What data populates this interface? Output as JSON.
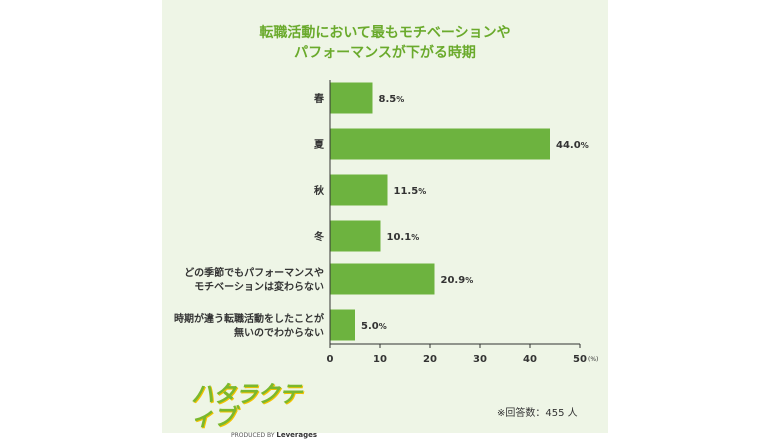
{
  "chart_data": {
    "type": "bar",
    "orientation": "horizontal",
    "title_lines": [
      "転職活動において最もモチベーションや",
      "パフォーマンスが下がる時期"
    ],
    "categories": [
      [
        "春"
      ],
      [
        "夏"
      ],
      [
        "秋"
      ],
      [
        "冬"
      ],
      [
        "どの季節でもパフォーマンスや",
        "モチベーションは変わらない"
      ],
      [
        "時期が違う転職活動をしたことが",
        "無いのでわからない"
      ]
    ],
    "values": [
      8.5,
      44.0,
      11.5,
      10.1,
      20.9,
      5.0
    ],
    "value_labels": [
      "8.5",
      "44.0",
      "11.5",
      "10.1",
      "20.9",
      "5.0"
    ],
    "value_unit": "%",
    "x_ticks": [
      "0",
      "10",
      "20",
      "30",
      "40",
      "50"
    ],
    "x_unit_label": "(%)",
    "xlim": [
      0,
      50
    ],
    "bar_color": "#6db33f",
    "title_color": "#6aaa2c",
    "grid": false
  },
  "logo": {
    "text": "ハタラクティブ",
    "sub_prefix": "PRODUCED BY",
    "sub_brand": "Leverages"
  },
  "note": "※回答数：455 人"
}
